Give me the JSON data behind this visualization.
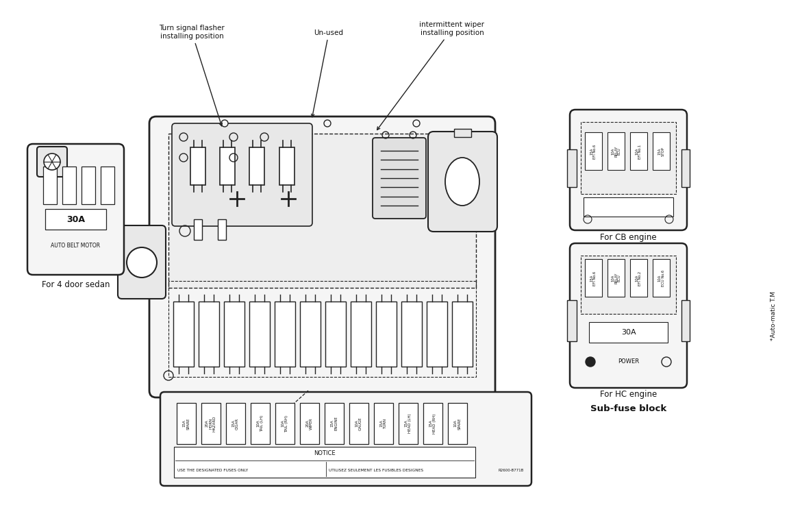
{
  "bg_color": "#ffffff",
  "line_color": "#222222",
  "text_color": "#111111",
  "annotations": {
    "turn_signal": "Turn signal flasher\ninstalling position",
    "unused": "Un-used",
    "intermittent": "intermittent wiper\ninstalling position",
    "for_4door": "For 4 door sedan",
    "for_cb": "For CB engine",
    "for_hc": "For HC engine",
    "sub_fuse": "Sub-fuse block",
    "auto_matic": "*Auto-matic T.M",
    "notice": "NOTICE",
    "notice_en": "USE THE DESIGNATED FUSES ONLY",
    "notice_fr": "UTILISEZ SEULEMENT LES FUSIBLES DESIGNES",
    "auto_belt": "AUTO BELT MOTOR",
    "part_no": "R2600-B771B",
    "30a_belt": "30A",
    "30a_hc": "30A",
    "power": "POWER"
  },
  "fuse_labels": [
    "15A\nSPARE",
    "20A\nHORN\nHAZARD",
    "15A\nCIGAR",
    "10A\nTAIL (LH)",
    "10A\nTAIL (RH)",
    "20A\nWIPER",
    "15A\nENGINE",
    "10A\nGAUGE",
    "15A\nTURN",
    "15A\nHEAD (LH)",
    "15A\nHEAD (RH)",
    "10A\nSPARE"
  ],
  "cb_fuse_labels": [
    "15A\nEFI No.6",
    "10A\nRELAY\nECU",
    "10A\nEFI No.1",
    "15A\nSTOP"
  ],
  "hc_fuse_labels": [
    "15A\nEFI No.6",
    "10A\nRELAY\nECU",
    "10A\nEFI No.2",
    "10A\nECU No.6"
  ]
}
